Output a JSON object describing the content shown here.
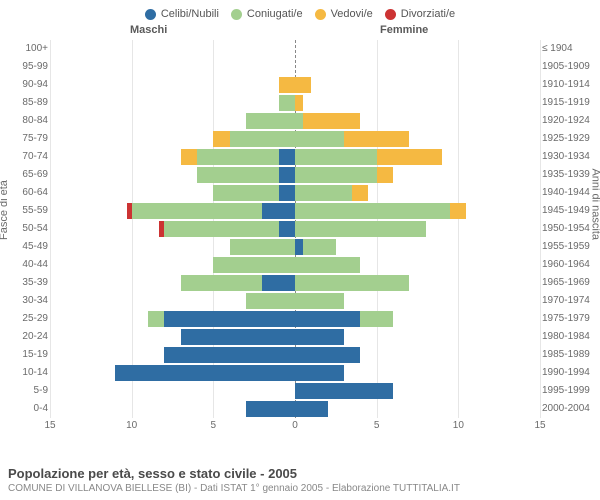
{
  "chart": {
    "type": "population-pyramid-stacked",
    "title": "Popolazione per età, sesso e stato civile - 2005",
    "subtitle": "COMUNE DI VILLANOVA BIELLESE (BI) - Dati ISTAT 1° gennaio 2005 - Elaborazione TUTTITALIA.IT",
    "header_male": "Maschi",
    "header_female": "Femmine",
    "ylabel_left": "Fasce di età",
    "ylabel_right": "Anni di nascita",
    "xlim": [
      -15,
      15
    ],
    "xticks": [
      15,
      10,
      5,
      0,
      5,
      10,
      15
    ],
    "background_color": "#ffffff",
    "grid_color": "#e6e6e6",
    "center_line_color": "#888888",
    "legend": [
      {
        "label": "Celibi/Nubili",
        "color": "#2f6da3"
      },
      {
        "label": "Coniugati/e",
        "color": "#a3cf8f"
      },
      {
        "label": "Vedovi/e",
        "color": "#f5b942"
      },
      {
        "label": "Divorziati/e",
        "color": "#cc3333"
      }
    ],
    "categories": [
      {
        "age": "100+",
        "birth": "≤ 1904"
      },
      {
        "age": "95-99",
        "birth": "1905-1909"
      },
      {
        "age": "90-94",
        "birth": "1910-1914"
      },
      {
        "age": "85-89",
        "birth": "1915-1919"
      },
      {
        "age": "80-84",
        "birth": "1920-1924"
      },
      {
        "age": "75-79",
        "birth": "1925-1929"
      },
      {
        "age": "70-74",
        "birth": "1930-1934"
      },
      {
        "age": "65-69",
        "birth": "1935-1939"
      },
      {
        "age": "60-64",
        "birth": "1940-1944"
      },
      {
        "age": "55-59",
        "birth": "1945-1949"
      },
      {
        "age": "50-54",
        "birth": "1950-1954"
      },
      {
        "age": "45-49",
        "birth": "1955-1959"
      },
      {
        "age": "40-44",
        "birth": "1960-1964"
      },
      {
        "age": "35-39",
        "birth": "1965-1969"
      },
      {
        "age": "30-34",
        "birth": "1970-1974"
      },
      {
        "age": "25-29",
        "birth": "1975-1979"
      },
      {
        "age": "20-24",
        "birth": "1980-1984"
      },
      {
        "age": "15-19",
        "birth": "1985-1989"
      },
      {
        "age": "10-14",
        "birth": "1990-1994"
      },
      {
        "age": "5-9",
        "birth": "1995-1999"
      },
      {
        "age": "0-4",
        "birth": "2000-2004"
      }
    ],
    "male": [
      {
        "cel": 0,
        "con": 0,
        "ved": 0,
        "div": 0
      },
      {
        "cel": 0,
        "con": 0,
        "ved": 0,
        "div": 0
      },
      {
        "cel": 0,
        "con": 0,
        "ved": 1,
        "div": 0
      },
      {
        "cel": 0,
        "con": 1,
        "ved": 0,
        "div": 0
      },
      {
        "cel": 0,
        "con": 3,
        "ved": 0,
        "div": 0
      },
      {
        "cel": 0,
        "con": 4,
        "ved": 1,
        "div": 0
      },
      {
        "cel": 1,
        "con": 5,
        "ved": 1,
        "div": 0
      },
      {
        "cel": 1,
        "con": 5,
        "ved": 0,
        "div": 0
      },
      {
        "cel": 1,
        "con": 4,
        "ved": 0,
        "div": 0
      },
      {
        "cel": 2,
        "con": 8,
        "ved": 0,
        "div": 0.3
      },
      {
        "cel": 1,
        "con": 7,
        "ved": 0,
        "div": 0.3
      },
      {
        "cel": 0,
        "con": 4,
        "ved": 0,
        "div": 0
      },
      {
        "cel": 0,
        "con": 5,
        "ved": 0,
        "div": 0
      },
      {
        "cel": 2,
        "con": 5,
        "ved": 0,
        "div": 0
      },
      {
        "cel": 0,
        "con": 3,
        "ved": 0,
        "div": 0
      },
      {
        "cel": 8,
        "con": 1,
        "ved": 0,
        "div": 0
      },
      {
        "cel": 7,
        "con": 0,
        "ved": 0,
        "div": 0
      },
      {
        "cel": 8,
        "con": 0,
        "ved": 0,
        "div": 0
      },
      {
        "cel": 11,
        "con": 0,
        "ved": 0,
        "div": 0
      },
      {
        "cel": 0,
        "con": 0,
        "ved": 0,
        "div": 0
      },
      {
        "cel": 3,
        "con": 0,
        "ved": 0,
        "div": 0
      }
    ],
    "female": [
      {
        "cel": 0,
        "con": 0,
        "ved": 0,
        "div": 0
      },
      {
        "cel": 0,
        "con": 0,
        "ved": 0,
        "div": 0
      },
      {
        "cel": 0,
        "con": 0,
        "ved": 1,
        "div": 0
      },
      {
        "cel": 0,
        "con": 0,
        "ved": 0.5,
        "div": 0
      },
      {
        "cel": 0,
        "con": 0.5,
        "ved": 3.5,
        "div": 0
      },
      {
        "cel": 0,
        "con": 3,
        "ved": 4,
        "div": 0
      },
      {
        "cel": 0,
        "con": 5,
        "ved": 4,
        "div": 0
      },
      {
        "cel": 0,
        "con": 5,
        "ved": 1,
        "div": 0
      },
      {
        "cel": 0,
        "con": 3.5,
        "ved": 1,
        "div": 0
      },
      {
        "cel": 0,
        "con": 9.5,
        "ved": 1,
        "div": 0
      },
      {
        "cel": 0,
        "con": 8,
        "ved": 0,
        "div": 0
      },
      {
        "cel": 0.5,
        "con": 2,
        "ved": 0,
        "div": 0
      },
      {
        "cel": 0,
        "con": 4,
        "ved": 0,
        "div": 0
      },
      {
        "cel": 0,
        "con": 7,
        "ved": 0,
        "div": 0
      },
      {
        "cel": 0,
        "con": 3,
        "ved": 0,
        "div": 0
      },
      {
        "cel": 4,
        "con": 2,
        "ved": 0,
        "div": 0
      },
      {
        "cel": 3,
        "con": 0,
        "ved": 0,
        "div": 0
      },
      {
        "cel": 4,
        "con": 0,
        "ved": 0,
        "div": 0
      },
      {
        "cel": 3,
        "con": 0,
        "ved": 0,
        "div": 0
      },
      {
        "cel": 6,
        "con": 0,
        "ved": 0,
        "div": 0
      },
      {
        "cel": 2,
        "con": 0,
        "ved": 0,
        "div": 0
      }
    ]
  }
}
